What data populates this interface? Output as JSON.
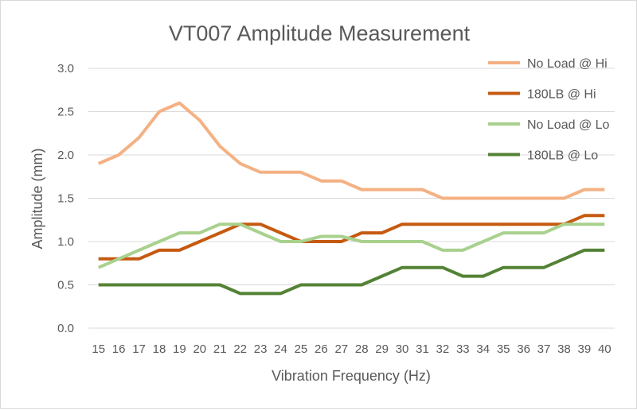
{
  "chart_data": {
    "type": "line",
    "title": "VT007 Amplitude Measurement",
    "xlabel": "Vibration Frequency (Hz)",
    "ylabel": "Amplitude (mm)",
    "ylim": [
      0,
      3.0
    ],
    "yticks": [
      "0.0",
      "0.5",
      "1.0",
      "1.5",
      "2.0",
      "2.5",
      "3.0"
    ],
    "categories": [
      "15",
      "16",
      "17",
      "18",
      "19",
      "20",
      "21",
      "22",
      "23",
      "24",
      "25",
      "26",
      "27",
      "28",
      "29",
      "30",
      "31",
      "32",
      "33",
      "34",
      "35",
      "36",
      "37",
      "38",
      "39",
      "40"
    ],
    "legend_position": "top-right",
    "grid": true,
    "series": [
      {
        "name": "No Load @ Hi",
        "color": "#f4b183",
        "values": [
          1.9,
          2.0,
          2.2,
          2.5,
          2.6,
          2.4,
          2.1,
          1.9,
          1.8,
          1.8,
          1.8,
          1.7,
          1.7,
          1.6,
          1.6,
          1.6,
          1.6,
          1.5,
          1.5,
          1.5,
          1.5,
          1.5,
          1.5,
          1.5,
          1.6,
          1.6
        ]
      },
      {
        "name": "180LB @ Hi",
        "color": "#c55a11",
        "values": [
          0.8,
          0.8,
          0.8,
          0.9,
          0.9,
          1.0,
          1.1,
          1.2,
          1.2,
          1.1,
          1.0,
          1.0,
          1.0,
          1.1,
          1.1,
          1.2,
          1.2,
          1.2,
          1.2,
          1.2,
          1.2,
          1.2,
          1.2,
          1.2,
          1.3,
          1.3
        ]
      },
      {
        "name": "No Load @ Lo",
        "color": "#a9d18e",
        "values": [
          0.7,
          0.8,
          0.9,
          1.0,
          1.1,
          1.1,
          1.2,
          1.2,
          1.1,
          1.0,
          1.0,
          1.06,
          1.06,
          1.0,
          1.0,
          1.0,
          1.0,
          0.9,
          0.9,
          1.0,
          1.1,
          1.1,
          1.1,
          1.2,
          1.2,
          1.2
        ]
      },
      {
        "name": "180LB @ Lo",
        "color": "#548235",
        "values": [
          0.5,
          0.5,
          0.5,
          0.5,
          0.5,
          0.5,
          0.5,
          0.4,
          0.4,
          0.4,
          0.5,
          0.5,
          0.5,
          0.5,
          0.6,
          0.7,
          0.7,
          0.7,
          0.6,
          0.6,
          0.7,
          0.7,
          0.7,
          0.8,
          0.9,
          0.9
        ]
      }
    ]
  }
}
